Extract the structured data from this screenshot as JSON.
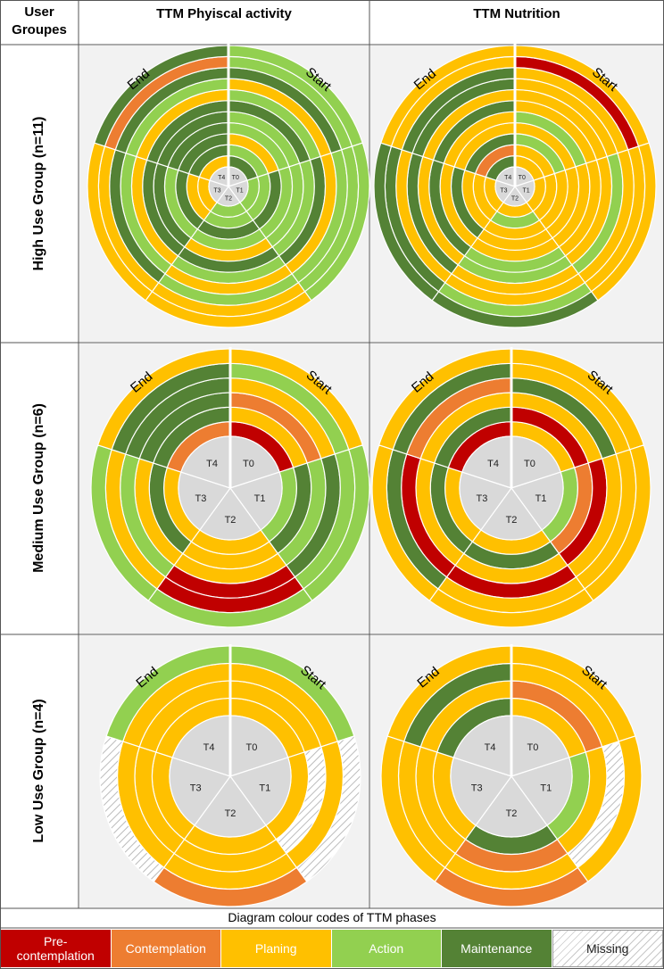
{
  "header": {
    "groups_label": "User Groupes",
    "col1": "TTM Phyiscal activity",
    "col2": "TTM Nutrition"
  },
  "rows": {
    "high": "High Use Group (n=11)",
    "medium": "Medium Use Group (n=6)",
    "low": "Low Use Group (n=4)"
  },
  "labels": {
    "start": "Start",
    "end": "End"
  },
  "legend": {
    "title": "Diagram colour codes of TTM phases",
    "items": [
      {
        "key": "P",
        "label": "Pre-\ncontemplation",
        "color": "#c00000"
      },
      {
        "key": "C",
        "label": "Contemplation",
        "color": "#ed7d31"
      },
      {
        "key": "L",
        "label": "Planing",
        "color": "#ffc000"
      },
      {
        "key": "A",
        "label": "Action",
        "color": "#92d050"
      },
      {
        "key": "M",
        "label": "Maintenance",
        "color": "#548235"
      },
      {
        "key": "X",
        "label": "Missing",
        "color": "#ffffff"
      }
    ]
  },
  "charts": [
    {
      "id": "high-pa",
      "sectors": [
        "T0",
        "T1",
        "T2",
        "T3",
        "T4"
      ],
      "rings": [
        [
          "M",
          "A",
          "A",
          "L",
          "L"
        ],
        [
          "A",
          "A",
          "A",
          "L",
          "M"
        ],
        [
          "L",
          "M",
          "M",
          "M",
          "M"
        ],
        [
          "A",
          "A",
          "A",
          "A",
          "M"
        ],
        [
          "A",
          "A",
          "L",
          "M",
          "M"
        ],
        [
          "M",
          "A",
          "M",
          "M",
          "M"
        ],
        [
          "A",
          "M",
          "A",
          "L",
          "L"
        ],
        [
          "L",
          "L",
          "L",
          "A",
          "A"
        ],
        [
          "M",
          "A",
          "A",
          "M",
          "M"
        ],
        [
          "A",
          "A",
          "L",
          "L",
          "C"
        ],
        [
          "A",
          "A",
          "L",
          "L",
          "M"
        ]
      ]
    },
    {
      "id": "high-nu",
      "sectors": [
        "T0",
        "T1",
        "T2",
        "T3",
        "T4"
      ],
      "rings": [
        [
          "L",
          "L",
          "L",
          "L",
          "M"
        ],
        [
          "L",
          "L",
          "A",
          "L",
          "C"
        ],
        [
          "A",
          "L",
          "L",
          "L",
          "M"
        ],
        [
          "L",
          "L",
          "L",
          "M",
          "L"
        ],
        [
          "A",
          "L",
          "L",
          "L",
          "L"
        ],
        [
          "L",
          "L",
          "A",
          "M",
          "M"
        ],
        [
          "L",
          "L",
          "A",
          "L",
          "L"
        ],
        [
          "L",
          "A",
          "L",
          "M",
          "M"
        ],
        [
          "L",
          "L",
          "L",
          "L",
          "M"
        ],
        [
          "P",
          "L",
          "A",
          "M",
          "L"
        ],
        [
          "L",
          "L",
          "M",
          "M",
          "L"
        ]
      ]
    },
    {
      "id": "med-pa",
      "sectors": [
        "T0",
        "T1",
        "T2",
        "T3",
        "T4"
      ],
      "rings": [
        [
          "P",
          "A",
          "L",
          "L",
          "C"
        ],
        [
          "L",
          "M",
          "L",
          "M",
          "M"
        ],
        [
          "C",
          "A",
          "L",
          "L",
          "M"
        ],
        [
          "L",
          "M",
          "P",
          "A",
          "M"
        ],
        [
          "A",
          "A",
          "P",
          "L",
          "M"
        ],
        [
          "L",
          "A",
          "A",
          "A",
          "L"
        ]
      ]
    },
    {
      "id": "med-nu",
      "sectors": [
        "T0",
        "T1",
        "T2",
        "T3",
        "T4"
      ],
      "rings": [
        [
          "L",
          "A",
          "L",
          "L",
          "P"
        ],
        [
          "P",
          "C",
          "M",
          "M",
          "M"
        ],
        [
          "L",
          "P",
          "L",
          "L",
          "L"
        ],
        [
          "M",
          "L",
          "P",
          "P",
          "C"
        ],
        [
          "L",
          "L",
          "L",
          "M",
          "M"
        ],
        [
          "L",
          "L",
          "L",
          "L",
          "L"
        ]
      ]
    },
    {
      "id": "low-pa",
      "sectors": [
        "T0",
        "T1",
        "T2",
        "T3",
        "T4"
      ],
      "rings": [
        [
          "L",
          "L",
          "L",
          "L",
          "L"
        ],
        [
          "L",
          "X",
          "L",
          "L",
          "L"
        ],
        [
          "L",
          "L",
          "L",
          "L",
          "L"
        ],
        [
          "A",
          "X",
          "C",
          "X",
          "A"
        ]
      ]
    },
    {
      "id": "low-nu",
      "sectors": [
        "T0",
        "T1",
        "T2",
        "T3",
        "T4"
      ],
      "rings": [
        [
          "L",
          "A",
          "M",
          "L",
          "M"
        ],
        [
          "C",
          "L",
          "C",
          "L",
          "L"
        ],
        [
          "L",
          "X",
          "L",
          "L",
          "M"
        ],
        [
          "L",
          "L",
          "C",
          "L",
          "L"
        ]
      ]
    }
  ]
}
